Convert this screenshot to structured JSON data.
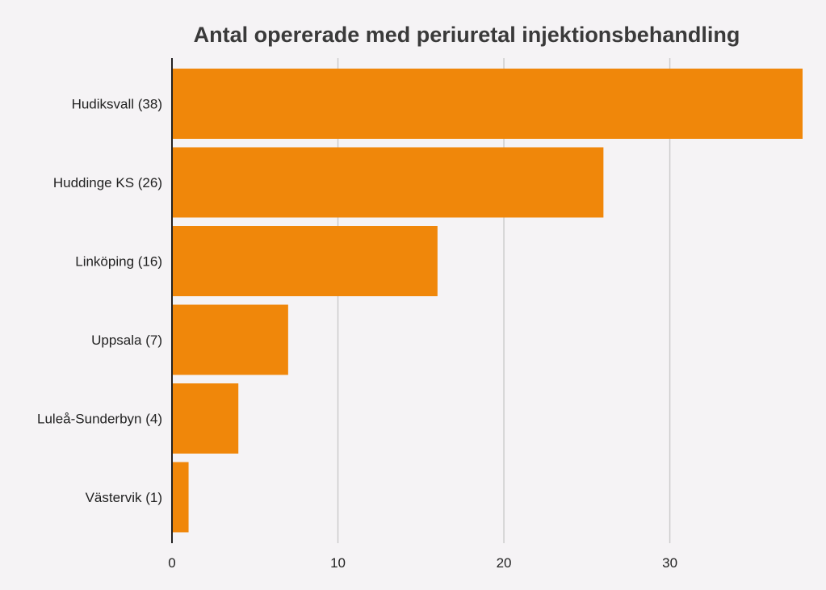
{
  "chart_data": {
    "type": "bar",
    "orientation": "horizontal",
    "title": "Antal opererade med periuretal injektionsbehandling",
    "xlabel": "",
    "ylabel": "",
    "categories": [
      "Hudiksvall (38)",
      "Huddinge KS (26)",
      "Linköping (16)",
      "Uppsala (7)",
      "Luleå-Sunderbyn (4)",
      "Västervik (1)"
    ],
    "values": [
      38,
      26,
      16,
      7,
      4,
      1
    ],
    "xlim": [
      0,
      38
    ],
    "xticks": [
      0,
      10,
      20,
      30
    ],
    "grid": true,
    "legend": "none",
    "bar_color": "#f0870a",
    "gridline_color": "#cccccc",
    "axis_color": "#222222",
    "background": "#f5f3f5"
  }
}
